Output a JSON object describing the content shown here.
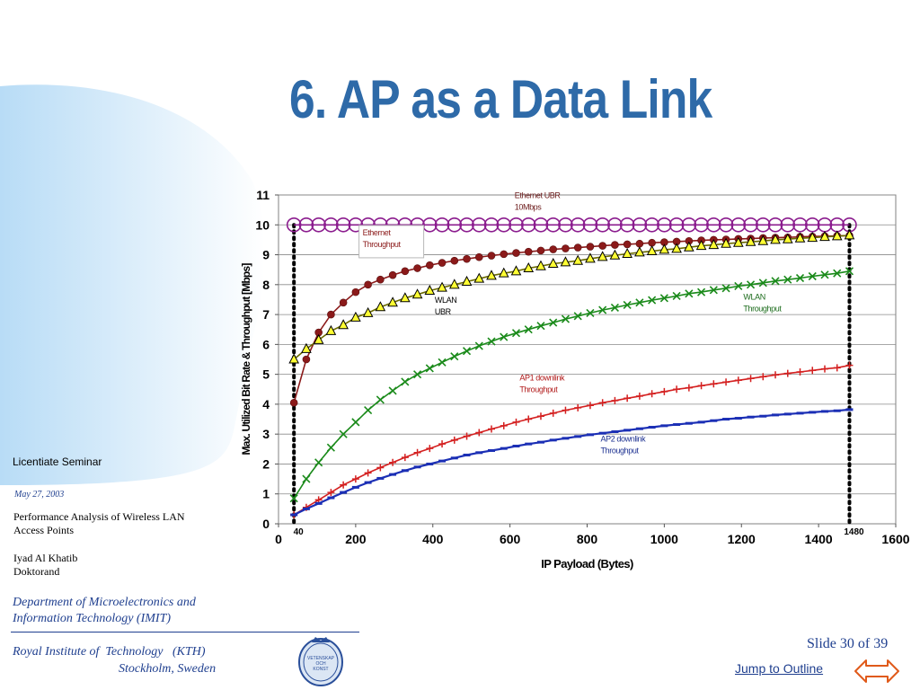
{
  "slide": {
    "title": "6. AP as a Data Link",
    "seminar": "Licentiate Seminar",
    "date": "May 27, 2003",
    "paper_line1": "Performance Analysis of Wireless LAN",
    "paper_line2": "Access Points",
    "author_name": "Iyad Al  Khatib",
    "author_role": "Doktorand",
    "dept_line1": "Department of Microelectronics and",
    "dept_line2": "Information Technology (IMIT)",
    "inst_line1": "Royal Institute of  Technology   (KTH)",
    "inst_line2": "Stockholm, Sweden",
    "seal_text": "VETENSKAP OCH KONST",
    "slide_number": "Slide 30 of 39",
    "jump_label": "Jump to Outline",
    "icons": {
      "navigation": "left-right-arrow-icon",
      "seal": "kth-seal-icon"
    }
  },
  "chart_data": {
    "type": "line",
    "xlabel": "IP Payload (Bytes)",
    "ylabel": "Max. Utilized Bit Rate & Throughput [Mbps]",
    "xlim": [
      0,
      1600
    ],
    "ylim": [
      0,
      11
    ],
    "x_ticks": [
      "0",
      "200",
      "400",
      "600",
      "800",
      "1000",
      "1200",
      "1400",
      "1600"
    ],
    "y_ticks": [
      "0",
      "1",
      "2",
      "3",
      "4",
      "5",
      "6",
      "7",
      "8",
      "9",
      "10",
      "11"
    ],
    "grid": true,
    "reference_lines": [
      {
        "x": 40,
        "label": "40"
      },
      {
        "x": 1480,
        "label": "1480"
      }
    ],
    "x": [
      40,
      72,
      104,
      136,
      168,
      200,
      232,
      264,
      296,
      328,
      360,
      392,
      424,
      456,
      488,
      520,
      552,
      584,
      616,
      648,
      680,
      712,
      744,
      776,
      808,
      840,
      872,
      904,
      936,
      968,
      1000,
      1032,
      1064,
      1096,
      1128,
      1160,
      1192,
      1224,
      1256,
      1288,
      1320,
      1352,
      1384,
      1416,
      1448,
      1480
    ],
    "series": [
      {
        "name": "Ethernet UBR 10Mbps",
        "color": "#8b1c8e",
        "marker": "circle-open",
        "values": [
          10,
          10,
          10,
          10,
          10,
          10,
          10,
          10,
          10,
          10,
          10,
          10,
          10,
          10,
          10,
          10,
          10,
          10,
          10,
          10,
          10,
          10,
          10,
          10,
          10,
          10,
          10,
          10,
          10,
          10,
          10,
          10,
          10,
          10,
          10,
          10,
          10,
          10,
          10,
          10,
          10,
          10,
          10,
          10,
          10,
          10
        ]
      },
      {
        "name": "Ethernet Throughput",
        "color": "#8b1a1a",
        "marker": "circle-filled",
        "values": [
          4.05,
          5.5,
          6.4,
          7.0,
          7.4,
          7.75,
          8.0,
          8.17,
          8.32,
          8.45,
          8.55,
          8.65,
          8.73,
          8.8,
          8.86,
          8.92,
          8.97,
          9.02,
          9.06,
          9.1,
          9.14,
          9.18,
          9.21,
          9.24,
          9.27,
          9.3,
          9.33,
          9.35,
          9.37,
          9.4,
          9.42,
          9.44,
          9.46,
          9.48,
          9.5,
          9.51,
          9.53,
          9.54,
          9.56,
          9.57,
          9.58,
          9.6,
          9.61,
          9.62,
          9.63,
          9.64
        ]
      },
      {
        "name": "WLAN UBR",
        "color": "#6b6b00",
        "marker": "triangle-yellow",
        "values": [
          5.5,
          5.85,
          6.15,
          6.45,
          6.65,
          6.9,
          7.05,
          7.25,
          7.4,
          7.55,
          7.67,
          7.8,
          7.9,
          8.0,
          8.1,
          8.2,
          8.3,
          8.38,
          8.45,
          8.55,
          8.62,
          8.7,
          8.75,
          8.8,
          8.87,
          8.93,
          8.98,
          9.03,
          9.08,
          9.12,
          9.17,
          9.2,
          9.25,
          9.3,
          9.33,
          9.37,
          9.4,
          9.43,
          9.46,
          9.5,
          9.52,
          9.55,
          9.57,
          9.6,
          9.62,
          9.65
        ]
      },
      {
        "name": "WLAN Throughput",
        "color": "#1a8a1a",
        "marker": "x",
        "values": [
          0.85,
          1.5,
          2.05,
          2.55,
          3.0,
          3.4,
          3.8,
          4.15,
          4.45,
          4.75,
          5.0,
          5.2,
          5.4,
          5.6,
          5.78,
          5.95,
          6.1,
          6.25,
          6.38,
          6.5,
          6.62,
          6.73,
          6.85,
          6.95,
          7.05,
          7.15,
          7.23,
          7.32,
          7.4,
          7.48,
          7.55,
          7.62,
          7.7,
          7.75,
          7.82,
          7.88,
          7.95,
          8.0,
          8.06,
          8.12,
          8.17,
          8.22,
          8.28,
          8.33,
          8.38,
          8.45
        ]
      },
      {
        "name": "AP1 downlink Throughput",
        "color": "#d42020",
        "marker": "plus",
        "values": [
          0.3,
          0.55,
          0.8,
          1.05,
          1.3,
          1.5,
          1.7,
          1.88,
          2.05,
          2.22,
          2.38,
          2.52,
          2.67,
          2.8,
          2.93,
          3.05,
          3.17,
          3.28,
          3.4,
          3.5,
          3.6,
          3.7,
          3.8,
          3.88,
          3.96,
          4.05,
          4.12,
          4.2,
          4.27,
          4.35,
          4.42,
          4.5,
          4.55,
          4.62,
          4.68,
          4.74,
          4.8,
          4.86,
          4.92,
          4.98,
          5.03,
          5.08,
          5.13,
          5.18,
          5.22,
          5.3
        ]
      },
      {
        "name": "AP2 downlink Throughput",
        "color": "#1b2fb5",
        "marker": "dash",
        "values": [
          0.3,
          0.5,
          0.68,
          0.87,
          1.05,
          1.22,
          1.38,
          1.52,
          1.65,
          1.78,
          1.9,
          2.0,
          2.1,
          2.2,
          2.3,
          2.38,
          2.45,
          2.52,
          2.6,
          2.67,
          2.73,
          2.8,
          2.86,
          2.92,
          2.98,
          3.03,
          3.08,
          3.13,
          3.18,
          3.23,
          3.28,
          3.32,
          3.36,
          3.4,
          3.45,
          3.5,
          3.53,
          3.57,
          3.6,
          3.64,
          3.67,
          3.7,
          3.73,
          3.76,
          3.78,
          3.82
        ]
      }
    ],
    "annotations": [
      {
        "line1": "Ethernet UBR",
        "line2": "10Mbps",
        "x": 612,
        "y": 10.9,
        "color": "#6b1a1a",
        "boxed": false
      },
      {
        "line1": "Ethernet",
        "line2": "Throughput",
        "x": 218,
        "y": 9.65,
        "color": "#8b1a1a",
        "boxed": true
      },
      {
        "line1": "WLAN",
        "line2": "UBR",
        "x": 405,
        "y": 7.4,
        "color": "#000000",
        "boxed": false
      },
      {
        "line1": "WLAN",
        "line2": "Throughput",
        "x": 1205,
        "y": 7.5,
        "color": "#1a6a1a",
        "boxed": false
      },
      {
        "line1": "AP1 downlink",
        "line2": "Throughput",
        "x": 625,
        "y": 4.8,
        "color": "#b01818",
        "boxed": false
      },
      {
        "line1": "AP2 downlink",
        "line2": "Throughput",
        "x": 835,
        "y": 2.75,
        "color": "#1b2f90",
        "boxed": false
      }
    ]
  }
}
